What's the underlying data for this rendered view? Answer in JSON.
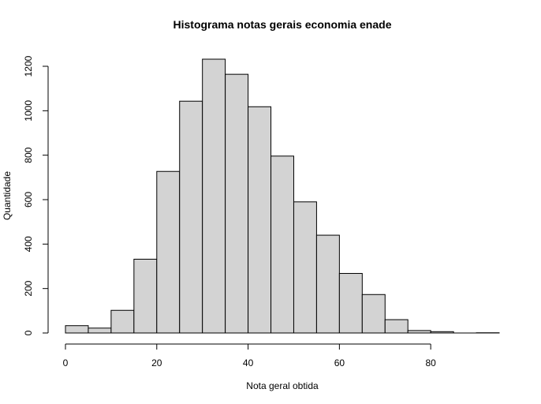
{
  "chart_data": {
    "type": "bar",
    "title": "Histograma notas gerais economia enade",
    "xlabel": "Nota geral obtida",
    "ylabel": "Quantidade",
    "bins": [
      {
        "start": 0,
        "end": 5,
        "count": 33
      },
      {
        "start": 5,
        "end": 10,
        "count": 22
      },
      {
        "start": 10,
        "end": 15,
        "count": 102
      },
      {
        "start": 15,
        "end": 20,
        "count": 332
      },
      {
        "start": 20,
        "end": 25,
        "count": 727
      },
      {
        "start": 25,
        "end": 30,
        "count": 1043
      },
      {
        "start": 30,
        "end": 35,
        "count": 1232
      },
      {
        "start": 35,
        "end": 40,
        "count": 1164
      },
      {
        "start": 40,
        "end": 45,
        "count": 1018
      },
      {
        "start": 45,
        "end": 50,
        "count": 796
      },
      {
        "start": 50,
        "end": 55,
        "count": 590
      },
      {
        "start": 55,
        "end": 60,
        "count": 440
      },
      {
        "start": 60,
        "end": 65,
        "count": 268
      },
      {
        "start": 65,
        "end": 70,
        "count": 173
      },
      {
        "start": 70,
        "end": 75,
        "count": 60
      },
      {
        "start": 75,
        "end": 80,
        "count": 11
      },
      {
        "start": 80,
        "end": 85,
        "count": 6
      },
      {
        "start": 85,
        "end": 90,
        "count": 0
      },
      {
        "start": 90,
        "end": 95,
        "count": 1
      }
    ],
    "xlim": [
      0,
      95
    ],
    "ylim": [
      0,
      1232
    ],
    "xticks": [
      0,
      20,
      40,
      60,
      80
    ],
    "yticks": [
      0,
      200,
      400,
      600,
      800,
      1000,
      1200
    ],
    "grid": false,
    "colors": {
      "bar_fill": "#d3d3d3",
      "bar_stroke": "#000000"
    }
  }
}
